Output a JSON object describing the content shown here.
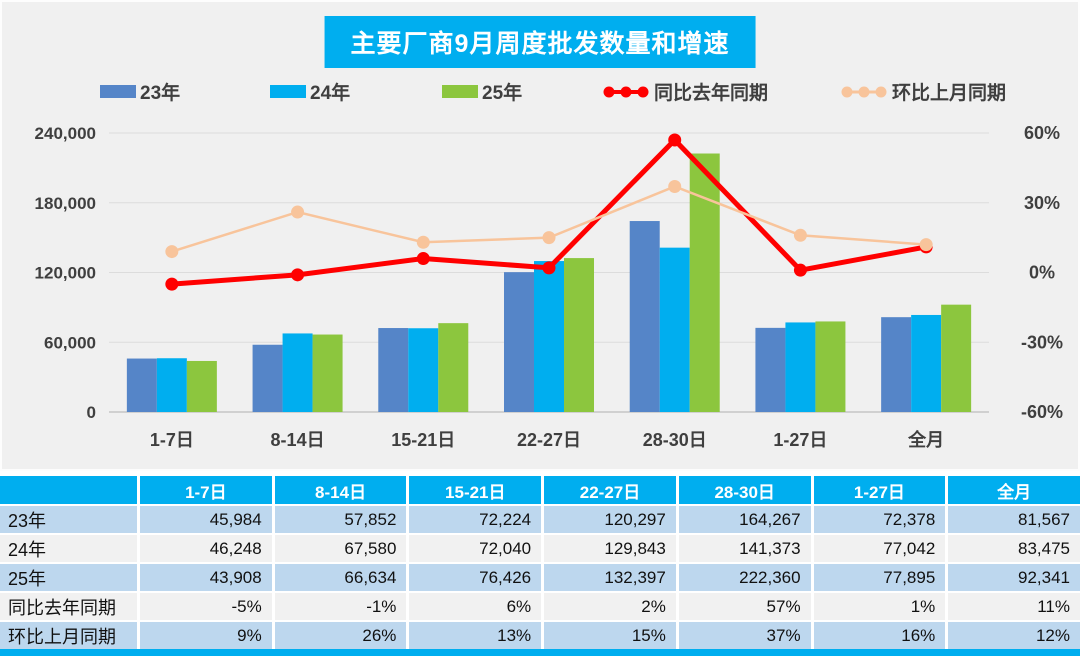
{
  "title": "主要厂商9月周度批发数量和增速",
  "colors": {
    "accent_cyan": "#00AEEF",
    "bar_blue": "#5585C8",
    "bar_cyan": "#00AEEF",
    "bar_green": "#8CC63E",
    "line_red": "#FF0000",
    "line_peach": "#F8C49B",
    "row_blue": "#BDD7EE",
    "row_gray": "#F1F1F1",
    "chart_bg": "#F0F0F0",
    "grid_line": "#DCDCDC",
    "axis_line": "#C6C6C6",
    "axis_text": "#3F3F3F",
    "header_text": "#FFFFFF"
  },
  "chart_data": {
    "type": "bar",
    "title": "主要厂商9月周度批发数量和增速",
    "categories": [
      "1-7日",
      "8-14日",
      "15-21日",
      "22-27日",
      "28-30日",
      "1-27日",
      "全月"
    ],
    "series": [
      {
        "name": "23年",
        "kind": "bar",
        "axis": "left",
        "color": "#5585C8",
        "values": [
          45984,
          57852,
          72224,
          120297,
          164267,
          72378,
          81567
        ]
      },
      {
        "name": "24年",
        "kind": "bar",
        "axis": "left",
        "color": "#00AEEF",
        "values": [
          46248,
          67580,
          72040,
          129843,
          141373,
          77042,
          83475
        ]
      },
      {
        "name": "25年",
        "kind": "bar",
        "axis": "left",
        "color": "#8CC63E",
        "values": [
          43908,
          66634,
          76426,
          132397,
          222360,
          77895,
          92341
        ]
      },
      {
        "name": "同比去年同期",
        "kind": "line",
        "axis": "right",
        "color": "#FF0000",
        "values": [
          -5,
          -1,
          6,
          2,
          57,
          1,
          11
        ]
      },
      {
        "name": "环比上月同期",
        "kind": "line",
        "axis": "right",
        "color": "#F8C49B",
        "values": [
          9,
          26,
          13,
          15,
          37,
          16,
          12
        ]
      }
    ],
    "left_axis": {
      "min": 0,
      "max": 240000,
      "tick_labels": [
        "0",
        "60,000",
        "120,000",
        "180,000",
        "240,000"
      ]
    },
    "right_axis": {
      "min": -60,
      "max": 60,
      "tick_labels": [
        "-60%",
        "-30%",
        "0%",
        "30%",
        "60%"
      ]
    },
    "grid": true,
    "legend_position": "top"
  },
  "table": {
    "header": [
      "",
      "1-7日",
      "8-14日",
      "15-21日",
      "22-27日",
      "28-30日",
      "1-27日",
      "全月"
    ],
    "rows": [
      {
        "label": "23年",
        "values": [
          "45,984",
          "57,852",
          "72,224",
          "120,297",
          "164,267",
          "72,378",
          "81,567"
        ]
      },
      {
        "label": "24年",
        "values": [
          "46,248",
          "67,580",
          "72,040",
          "129,843",
          "141,373",
          "77,042",
          "83,475"
        ]
      },
      {
        "label": "25年",
        "values": [
          "43,908",
          "66,634",
          "76,426",
          "132,397",
          "222,360",
          "77,895",
          "92,341"
        ]
      },
      {
        "label": "同比去年同期",
        "values": [
          "-5%",
          "-1%",
          "6%",
          "2%",
          "57%",
          "1%",
          "11%"
        ]
      },
      {
        "label": "环比上月同期",
        "values": [
          "9%",
          "26%",
          "13%",
          "15%",
          "37%",
          "16%",
          "12%"
        ]
      }
    ]
  }
}
